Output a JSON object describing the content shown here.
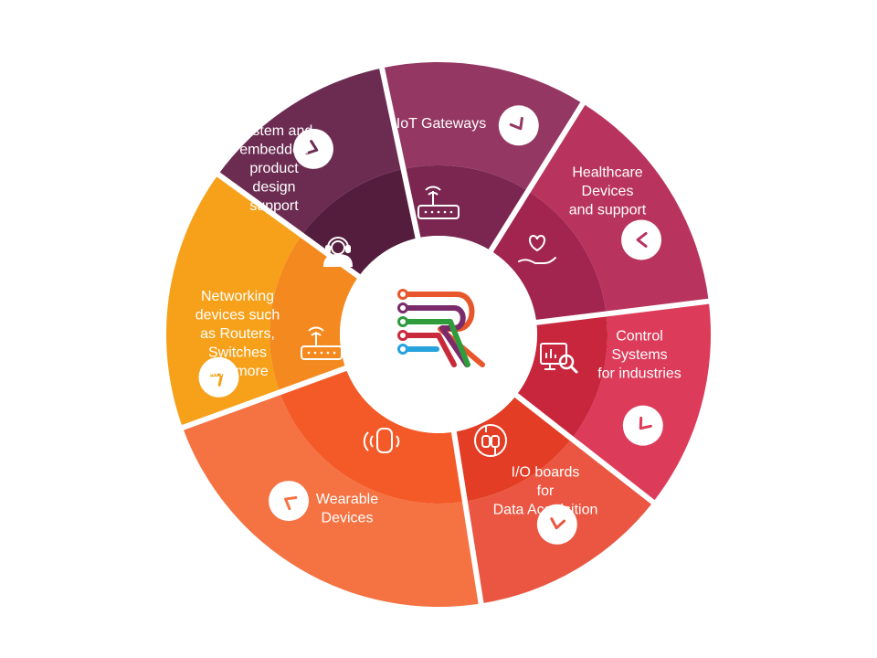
{
  "segments": [
    {
      "id": "iot-gateways",
      "lines": [
        "IoT Gateways"
      ],
      "icon": "router-icon",
      "color": "#f7a11a",
      "inner_color": "#f48a1f"
    },
    {
      "id": "healthcare",
      "lines": [
        "Healthcare",
        "Devices",
        "and support"
      ],
      "icon": "heart-hand-icon",
      "color": "#6c2c52",
      "inner_color": "#541d3e"
    },
    {
      "id": "control-systems",
      "lines": [
        "Control",
        "Systems",
        "for industries"
      ],
      "icon": "monitor-search-icon",
      "color": "#943763",
      "inner_color": "#7a2650"
    },
    {
      "id": "io-boards",
      "lines": [
        "I/O boards",
        "for",
        "Data Acquisition"
      ],
      "icon": "chip-icon",
      "color": "#b8345e",
      "inner_color": "#a22550"
    },
    {
      "id": "wearable",
      "lines": [
        "Wearable",
        "Devices"
      ],
      "icon": "watch-icon",
      "color": "#dd3b5a",
      "inner_color": "#c8263c"
    },
    {
      "id": "networking",
      "lines": [
        "Networking",
        "devices such",
        "as Routers,",
        "Switches",
        "and more"
      ],
      "icon": "router-icon",
      "color": "#ea5641",
      "inner_color": "#e33d25"
    },
    {
      "id": "system-design",
      "lines": [
        "System and",
        "embedded",
        "product",
        "design",
        "support"
      ],
      "icon": "headset-icon",
      "color": "#f57242",
      "inner_color": "#f45a27"
    }
  ],
  "center_logo": {
    "name": "R",
    "stripe_colors": [
      "#e8572b",
      "#7b2a6a",
      "#2e9c3c",
      "#c92a3b",
      "#26a3dd"
    ]
  }
}
